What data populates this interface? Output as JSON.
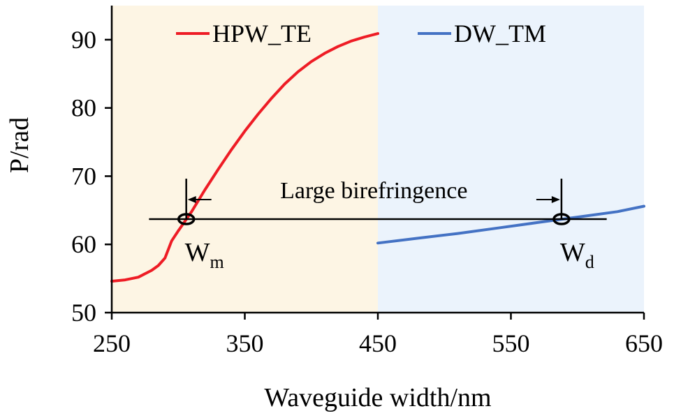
{
  "chart_data": {
    "type": "line",
    "xlabel": "Waveguide width/nm",
    "ylabel": "P/rad",
    "xlim": [
      250,
      650
    ],
    "ylim": [
      50,
      95
    ],
    "xticks": [
      250,
      350,
      450,
      550,
      650
    ],
    "yticks": [
      50,
      60,
      70,
      80,
      90
    ],
    "x_tick_labels": [
      "250",
      "350",
      "450",
      "550",
      "650"
    ],
    "y_tick_labels": [
      "50",
      "60",
      "70",
      "80",
      "90"
    ],
    "grid": false,
    "legend_position": "top",
    "regions": [
      {
        "x": [
          250,
          450
        ],
        "color": "#fdf5e4"
      },
      {
        "x": [
          450,
          650
        ],
        "color": "#ebf3fc"
      }
    ],
    "series": [
      {
        "name": "HPW_TE",
        "color": "#ee1c25",
        "x": [
          250,
          260,
          270,
          280,
          285,
          290,
          295,
          300,
          310,
          320,
          330,
          340,
          350,
          360,
          370,
          380,
          390,
          400,
          410,
          420,
          430,
          440,
          450
        ],
        "y": [
          54.6,
          54.8,
          55.2,
          56.2,
          56.9,
          58.0,
          60.5,
          62.0,
          64.8,
          68.0,
          71.0,
          73.9,
          76.6,
          79.1,
          81.4,
          83.5,
          85.3,
          86.8,
          88.0,
          89.0,
          89.8,
          90.4,
          90.9
        ]
      },
      {
        "name": "DW_TM",
        "color": "#4472c4",
        "x": [
          450,
          480,
          510,
          540,
          570,
          600,
          630,
          650
        ],
        "y": [
          60.2,
          60.9,
          61.6,
          62.4,
          63.2,
          64.0,
          64.8,
          65.6
        ]
      }
    ],
    "annotations": {
      "text": "Large birefringence",
      "reference_line": {
        "y": 63.7,
        "x_start": 278,
        "x_end": 622
      },
      "markers": [
        {
          "label": "W",
          "subscript": "m",
          "x": 306,
          "y": 63.7
        },
        {
          "label": "W",
          "subscript": "d",
          "x": 588,
          "y": 63.7
        }
      ]
    }
  }
}
